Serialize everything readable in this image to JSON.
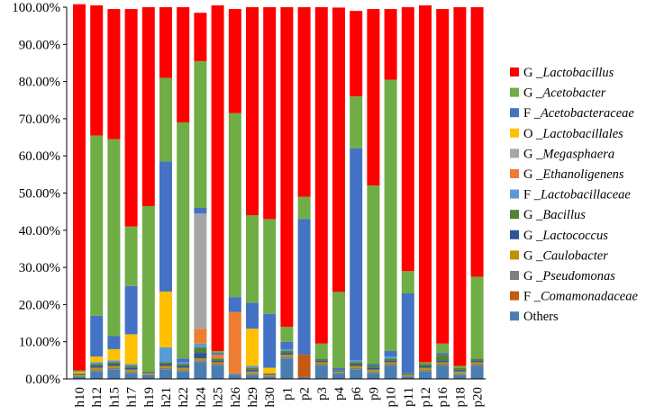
{
  "chart_data": {
    "type": "bar",
    "stacked": true,
    "ylim": [
      0,
      100
    ],
    "y_ticks": [
      "0.00%",
      "10.00%",
      "20.00%",
      "30.00%",
      "40.00%",
      "50.00%",
      "60.00%",
      "70.00%",
      "80.00%",
      "90.00%",
      "100.00%"
    ],
    "grid": false,
    "legend_position": "right",
    "categories": [
      "h10",
      "h12",
      "h15",
      "h17",
      "h19",
      "h21",
      "h22",
      "h24",
      "h25",
      "h26",
      "h29",
      "h30",
      "p1",
      "p2",
      "p3",
      "p4",
      "p6",
      "p9",
      "p10",
      "p11",
      "p12",
      "p16",
      "p18",
      "p20"
    ],
    "series": [
      {
        "name": "Others",
        "prefix": "",
        "color": "#4a7eb0",
        "values": [
          0.5,
          2.0,
          2.5,
          1.5,
          1.0,
          2.5,
          2.0,
          4.5,
          3.5,
          1.0,
          1.0,
          0.5,
          5.5,
          0.5,
          3.5,
          1.5,
          2.5,
          1.5,
          3.5,
          0.5,
          2.0,
          3.5,
          1.0,
          3.5
        ]
      },
      {
        "name": "F _Comamonadaceae",
        "prefix": "F ",
        "italic": "_Comamonadaceae",
        "color": "#c55a11",
        "values": [
          0,
          0,
          0,
          0,
          0,
          0,
          0,
          0,
          0,
          0,
          0,
          0,
          0,
          6.0,
          0,
          0,
          0,
          0,
          0,
          0,
          0,
          0,
          0,
          0
        ]
      },
      {
        "name": "G _Pseudomonas",
        "prefix": "G ",
        "italic": "_Pseudomonas",
        "color": "#7f7f7f",
        "values": [
          0.3,
          0.5,
          0.5,
          0.5,
          0.3,
          0.5,
          0.5,
          0.5,
          0.5,
          0.5,
          0.5,
          0.3,
          0.5,
          0,
          0.5,
          0.3,
          0.5,
          0.5,
          0.5,
          0.3,
          0.5,
          0.5,
          0.5,
          0.5
        ]
      },
      {
        "name": "G _Caulobacter",
        "prefix": "G ",
        "italic": "_Caulobacter",
        "color": "#bf9000",
        "values": [
          0.3,
          0.5,
          0.5,
          0.5,
          0.3,
          0.5,
          0.5,
          0.5,
          0.5,
          0,
          0.5,
          0.3,
          0.5,
          0,
          0.5,
          0.2,
          0.5,
          0.5,
          0.5,
          0.3,
          0.5,
          0.5,
          0.5,
          0.5
        ]
      },
      {
        "name": "G _Lactococcus",
        "prefix": "G ",
        "italic": "_Lactococcus",
        "color": "#2f5597",
        "values": [
          0.2,
          0.5,
          0.5,
          0.5,
          0.2,
          0.5,
          0.5,
          1.5,
          0.5,
          0,
          0.5,
          0.2,
          0.5,
          0,
          0.5,
          0.2,
          0.5,
          0.5,
          0.5,
          0.2,
          0.5,
          0.5,
          0.5,
          0.5
        ]
      },
      {
        "name": "G _Bacillus",
        "prefix": "G ",
        "italic": "_Bacillus",
        "color": "#548235",
        "values": [
          0.2,
          0.5,
          0.5,
          0.5,
          0.2,
          0.5,
          0.5,
          1.5,
          0.5,
          0,
          0.5,
          0.2,
          0.5,
          0,
          0.5,
          0.2,
          0.5,
          0.5,
          0.5,
          0.2,
          0.5,
          1.5,
          0.5,
          0.5
        ]
      },
      {
        "name": "F _Lactobacillaceae",
        "prefix": "F ",
        "italic": "_Lactobacillaceae",
        "color": "#5b9bd5",
        "values": [
          0,
          0.5,
          0.5,
          0.5,
          0,
          4.0,
          0.5,
          1.0,
          0,
          0,
          0.5,
          0,
          0.5,
          0,
          0,
          0,
          0.5,
          0,
          0.5,
          0,
          0,
          0,
          0,
          0
        ]
      },
      {
        "name": "G _Ethanoligenens",
        "prefix": "G ",
        "italic": "_Ethanoligenens",
        "color": "#ed7d31",
        "values": [
          0,
          0,
          0,
          0,
          0,
          0,
          0,
          4.0,
          1.0,
          16.5,
          0,
          0,
          0,
          0,
          0,
          0,
          0,
          0,
          0,
          0,
          0,
          0,
          0,
          0
        ]
      },
      {
        "name": "G _Megasphaera",
        "prefix": "G ",
        "italic": "_Megasphaera",
        "color": "#a5a5a5",
        "values": [
          0,
          0,
          0,
          0,
          0,
          0,
          0,
          31.0,
          0,
          0,
          0,
          0,
          0,
          0,
          0,
          0,
          0,
          0,
          0,
          0,
          0,
          0,
          0,
          0
        ]
      },
      {
        "name": "O _Lactobacillales",
        "prefix": "O ",
        "italic": "_Lactobacillales",
        "color": "#ffc000",
        "values": [
          0.3,
          1.5,
          3.0,
          8.0,
          0,
          15.0,
          0,
          0,
          0,
          0,
          10.0,
          1.5,
          0,
          0,
          0,
          0,
          0,
          0,
          0,
          0,
          0,
          0,
          0,
          0
        ]
      },
      {
        "name": "F _Acetobacteraceae",
        "prefix": "F ",
        "italic": "_Acetobacteraceae",
        "color": "#4472c4",
        "values": [
          0,
          11.0,
          3.5,
          13.0,
          0,
          35.0,
          1.0,
          1.5,
          0.5,
          4.0,
          7.0,
          14.5,
          2.0,
          36.5,
          0,
          0.5,
          57.0,
          0.5,
          1.5,
          21.5,
          0,
          0.5,
          0,
          0
        ]
      },
      {
        "name": "G _Acetobacter",
        "prefix": "G ",
        "italic": "_Acetobacter",
        "color": "#70ad47",
        "values": [
          0.5,
          48.5,
          53.0,
          16.0,
          44.5,
          22.5,
          63.5,
          39.5,
          0.5,
          49.5,
          23.5,
          25.5,
          4.0,
          6.0,
          4.0,
          20.5,
          14.0,
          48.0,
          73.0,
          6.0,
          0.5,
          2.5,
          0.5,
          22.0
        ]
      },
      {
        "name": "G _Lactobacillus",
        "prefix": "G ",
        "italic": "_Lactobacillus",
        "color": "#ff0000",
        "values": [
          98.5,
          35.0,
          35.0,
          58.5,
          53.5,
          19.0,
          31.0,
          13.0,
          93.0,
          28.0,
          56.0,
          57.0,
          86.0,
          51.0,
          90.5,
          76.5,
          23.0,
          47.5,
          19.0,
          71.0,
          96.0,
          90.0,
          96.5,
          72.5
        ]
      }
    ]
  }
}
